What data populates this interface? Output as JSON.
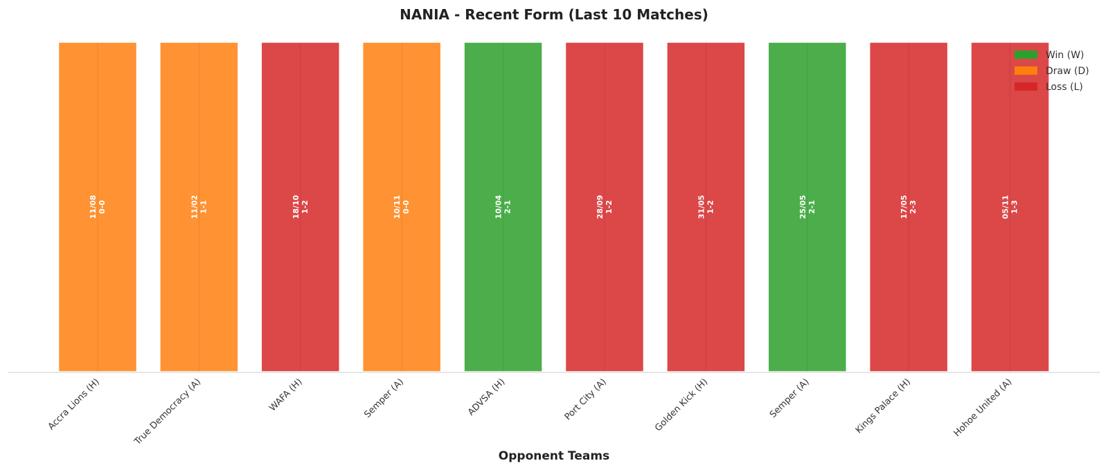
{
  "chart_data": {
    "type": "bar",
    "title": "NANIA - Recent Form (Last 10 Matches)",
    "xlabel": "Opponent Teams",
    "ylabel": "",
    "categories": [
      "Accra Lions (H)",
      "True Democracy (A)",
      "WAFA (H)",
      "Semper (A)",
      "ADVSA (H)",
      "Port City (A)",
      "Golden Kick (H)",
      "Semper (A)",
      "Kings Palace (H)",
      "Hohoe United (A)"
    ],
    "results": [
      "D",
      "D",
      "L",
      "D",
      "W",
      "L",
      "L",
      "W",
      "L",
      "L"
    ],
    "values": [
      1,
      1,
      1,
      1,
      1,
      1,
      1,
      1,
      1,
      1
    ],
    "dates": [
      "11/08",
      "11/02",
      "18/10",
      "10/11",
      "10/04",
      "28/09",
      "31/05",
      "25/05",
      "17/05",
      "05/11"
    ],
    "scores": [
      "0-0",
      "1-1",
      "1-2",
      "0-0",
      "2-1",
      "1-2",
      "1-2",
      "2-1",
      "2-3",
      "1-3"
    ],
    "ylim": [
      0,
      1
    ],
    "grid": true,
    "legend_position": "top-right",
    "legend": [
      {
        "key": "W",
        "label": "Win (W)",
        "color": "#2ca02c"
      },
      {
        "key": "D",
        "label": "Draw (D)",
        "color": "#ff7f0e"
      },
      {
        "key": "L",
        "label": "Loss (L)",
        "color": "#d62728"
      }
    ]
  }
}
